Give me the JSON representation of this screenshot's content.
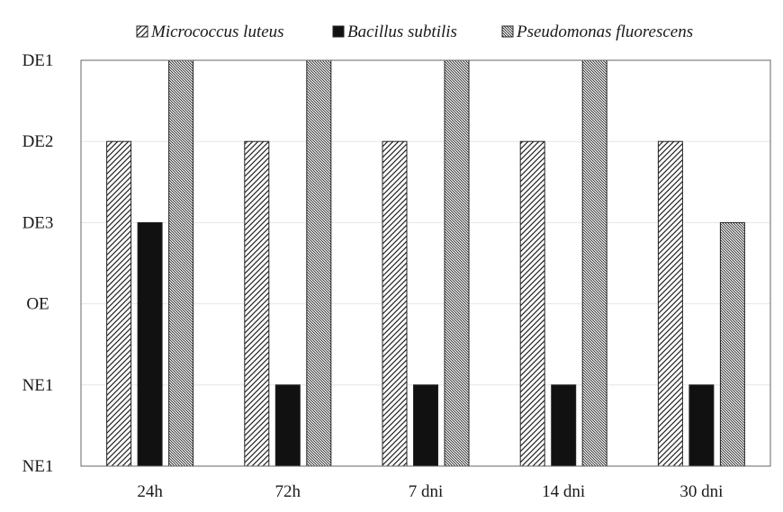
{
  "chart_data": {
    "type": "bar",
    "categories": [
      "24h",
      "72h",
      "7 dni",
      "14 dni",
      "30 dni"
    ],
    "y_levels": [
      "NE1",
      "NE1",
      "OE",
      "DE3",
      "DE2",
      "DE1"
    ],
    "series": [
      {
        "name": "Micrococcus luteus",
        "values": [
          4,
          4,
          4,
          4,
          4
        ],
        "color": "#222222",
        "fill_style": "diagonal-hatch"
      },
      {
        "name": "Bacillus subtilis",
        "values": [
          3,
          1,
          1,
          1,
          1
        ],
        "color": "#111111",
        "fill_style": "solid"
      },
      {
        "name": "Pseudomonas fluorescens",
        "values": [
          5,
          5,
          5,
          5,
          3
        ],
        "color": "#222222",
        "fill_style": "dense-hatch"
      }
    ],
    "ylim": [
      0,
      5
    ],
    "grid": true,
    "legend_position": "top",
    "title": "",
    "xlabel": "",
    "ylabel": ""
  }
}
